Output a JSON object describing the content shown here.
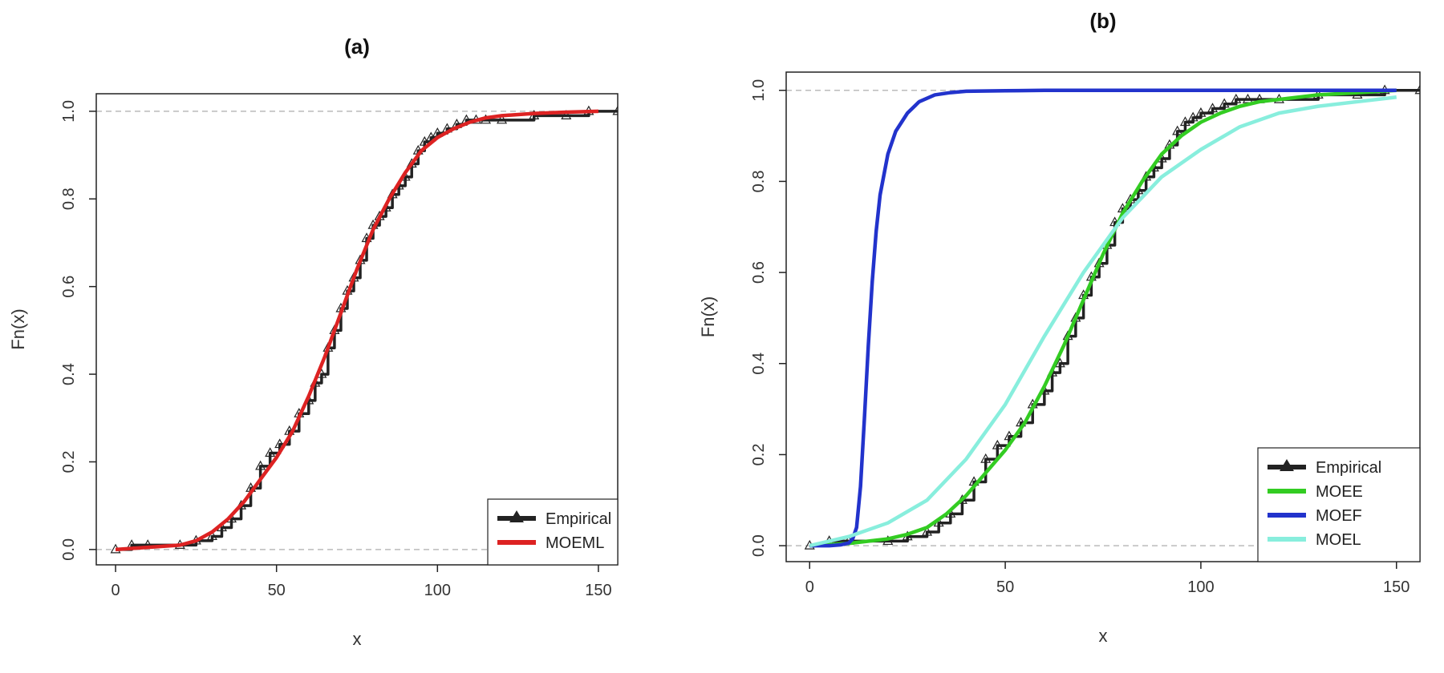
{
  "chart_data": [
    {
      "type": "line",
      "title": "(a)",
      "xlabel": "x",
      "ylabel": "Fn(x)",
      "xlim": [
        -6,
        156
      ],
      "ylim": [
        -0.035,
        1.04
      ],
      "xticks": [
        0,
        50,
        100,
        150
      ],
      "xtick_labels": [
        "0",
        "50",
        "100",
        "150"
      ],
      "yticks": [
        0.0,
        0.2,
        0.4,
        0.6,
        0.8,
        1.0
      ],
      "ytick_labels": [
        "0.0",
        "0.2",
        "0.4",
        "0.6",
        "0.8",
        "1.0"
      ],
      "reference_lines": [
        0,
        1
      ],
      "legend_position": "bottom-right",
      "series": [
        {
          "name": "Empirical",
          "color": "#222222",
          "style": "step",
          "marker": "triangle",
          "x": [
            0,
            5,
            10,
            20,
            25,
            30,
            33,
            36,
            39,
            42,
            45,
            48,
            51,
            54,
            57,
            60,
            62,
            64,
            66,
            68,
            70,
            72,
            74,
            76,
            78,
            80,
            82,
            84,
            86,
            88,
            90,
            92,
            94,
            96,
            98,
            100,
            103,
            106,
            109,
            112,
            115,
            120,
            130,
            140,
            147,
            156
          ],
          "y": [
            0.0,
            0.01,
            0.01,
            0.01,
            0.02,
            0.03,
            0.05,
            0.07,
            0.1,
            0.14,
            0.19,
            0.22,
            0.24,
            0.27,
            0.31,
            0.34,
            0.38,
            0.4,
            0.46,
            0.5,
            0.55,
            0.59,
            0.62,
            0.66,
            0.71,
            0.74,
            0.76,
            0.78,
            0.81,
            0.83,
            0.85,
            0.88,
            0.91,
            0.93,
            0.94,
            0.95,
            0.96,
            0.97,
            0.98,
            0.98,
            0.98,
            0.98,
            0.99,
            0.99,
            1.0,
            1.0
          ]
        },
        {
          "name": "MOEML",
          "color": "#dd2222",
          "style": "line",
          "x": [
            0,
            10,
            20,
            25,
            30,
            35,
            40,
            45,
            50,
            55,
            60,
            65,
            70,
            75,
            80,
            85,
            90,
            95,
            100,
            105,
            110,
            115,
            120,
            130,
            140,
            150
          ],
          "y": [
            0.0,
            0.005,
            0.01,
            0.02,
            0.04,
            0.07,
            0.11,
            0.16,
            0.21,
            0.27,
            0.35,
            0.44,
            0.54,
            0.64,
            0.73,
            0.8,
            0.86,
            0.91,
            0.94,
            0.96,
            0.975,
            0.985,
            0.99,
            0.995,
            0.998,
            1.0
          ]
        }
      ]
    },
    {
      "type": "line",
      "title": "(b)",
      "xlabel": "x",
      "ylabel": "Fn(x)",
      "xlim": [
        -6,
        156
      ],
      "ylim": [
        -0.035,
        1.04
      ],
      "xticks": [
        0,
        50,
        100,
        150
      ],
      "xtick_labels": [
        "0",
        "50",
        "100",
        "150"
      ],
      "yticks": [
        0.0,
        0.2,
        0.4,
        0.6,
        0.8,
        1.0
      ],
      "ytick_labels": [
        "0.0",
        "0.2",
        "0.4",
        "0.6",
        "0.8",
        "1.0"
      ],
      "reference_lines": [
        0,
        1
      ],
      "legend_position": "bottom-right",
      "series": [
        {
          "name": "Empirical",
          "color": "#222222",
          "style": "step",
          "marker": "triangle",
          "x": [
            0,
            5,
            10,
            20,
            25,
            30,
            33,
            36,
            39,
            42,
            45,
            48,
            51,
            54,
            57,
            60,
            62,
            64,
            66,
            68,
            70,
            72,
            74,
            76,
            78,
            80,
            82,
            84,
            86,
            88,
            90,
            92,
            94,
            96,
            98,
            100,
            103,
            106,
            109,
            112,
            115,
            120,
            130,
            140,
            147,
            156
          ],
          "y": [
            0.0,
            0.01,
            0.01,
            0.01,
            0.02,
            0.03,
            0.05,
            0.07,
            0.1,
            0.14,
            0.19,
            0.22,
            0.24,
            0.27,
            0.31,
            0.34,
            0.38,
            0.4,
            0.46,
            0.5,
            0.55,
            0.59,
            0.62,
            0.66,
            0.71,
            0.74,
            0.76,
            0.78,
            0.81,
            0.83,
            0.85,
            0.88,
            0.91,
            0.93,
            0.94,
            0.95,
            0.96,
            0.97,
            0.98,
            0.98,
            0.98,
            0.98,
            0.99,
            0.99,
            1.0,
            1.0
          ]
        },
        {
          "name": "MOEE",
          "color": "#33cc22",
          "style": "line",
          "x": [
            0,
            10,
            20,
            25,
            30,
            35,
            40,
            45,
            50,
            55,
            60,
            65,
            70,
            75,
            80,
            85,
            90,
            95,
            100,
            105,
            110,
            115,
            120,
            130,
            140,
            150
          ],
          "y": [
            0.0,
            0.005,
            0.015,
            0.025,
            0.04,
            0.07,
            0.11,
            0.16,
            0.21,
            0.27,
            0.35,
            0.44,
            0.54,
            0.64,
            0.73,
            0.8,
            0.86,
            0.9,
            0.93,
            0.95,
            0.965,
            0.975,
            0.98,
            0.99,
            0.995,
            1.0
          ]
        },
        {
          "name": "MOEF",
          "color": "#2233cc",
          "style": "line",
          "x": [
            0,
            5,
            8,
            10,
            11,
            12,
            13,
            14,
            15,
            16,
            17,
            18,
            20,
            22,
            25,
            28,
            32,
            36,
            40,
            50,
            60,
            80,
            100,
            120,
            140,
            150
          ],
          "y": [
            0.0,
            0.0,
            0.002,
            0.006,
            0.015,
            0.04,
            0.13,
            0.28,
            0.44,
            0.58,
            0.69,
            0.77,
            0.86,
            0.91,
            0.95,
            0.975,
            0.99,
            0.995,
            0.998,
            0.999,
            1.0,
            1.0,
            1.0,
            1.0,
            1.0,
            1.0
          ]
        },
        {
          "name": "MOEL",
          "color": "#88eedd",
          "style": "line",
          "x": [
            0,
            10,
            20,
            30,
            40,
            50,
            60,
            70,
            80,
            90,
            100,
            110,
            120,
            130,
            140,
            150
          ],
          "y": [
            0.0,
            0.02,
            0.05,
            0.1,
            0.19,
            0.31,
            0.46,
            0.6,
            0.72,
            0.81,
            0.87,
            0.92,
            0.95,
            0.965,
            0.975,
            0.985
          ]
        }
      ]
    }
  ]
}
